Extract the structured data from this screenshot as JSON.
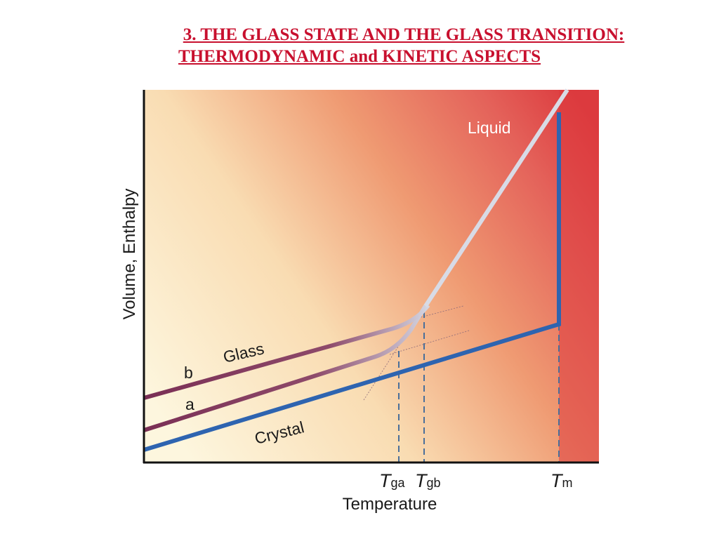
{
  "title": {
    "line1": "3. THE GLASS STATE AND THE GLASS TRANSITION:",
    "line2": "THERMODYNAMIC and KINETIC ASPECTS"
  },
  "diagram": {
    "y_axis_label": "Volume, Enthalpy",
    "x_axis_label": "Temperature",
    "labels": {
      "liquid": "Liquid",
      "glass": "Glass",
      "crystal": "Crystal",
      "curve_a": "a",
      "curve_b": "b"
    },
    "ticks": {
      "tga_main": "T",
      "tga_sub": "ga",
      "tgb_main": "T",
      "tgb_sub": "gb",
      "tm_main": "T",
      "tm_sub": "m"
    },
    "colors": {
      "title": "#c8102e",
      "crystal_line": "#2e64b0",
      "glass_line": "#7a2f55",
      "liquid_line": "#d8dbe6",
      "background_cool": "#fcf3d9",
      "background_hot": "#df4040"
    }
  }
}
